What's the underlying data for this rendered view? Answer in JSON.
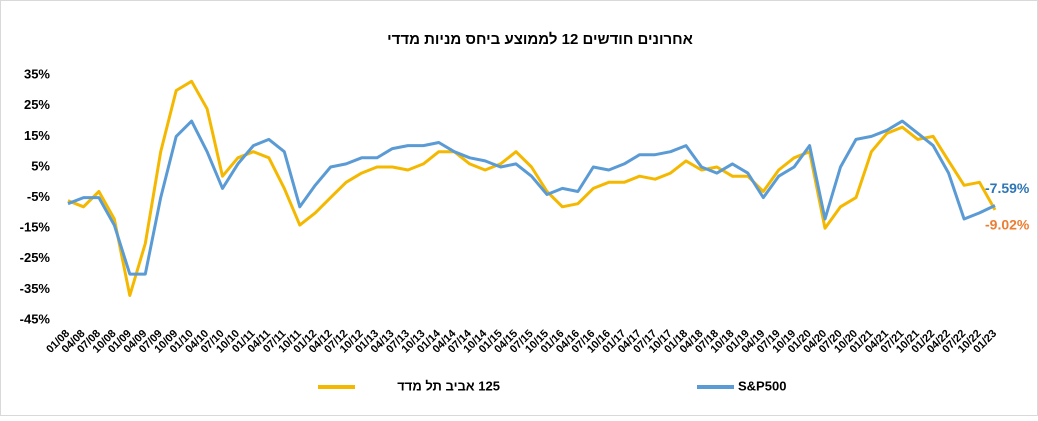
{
  "chart_data": {
    "type": "line",
    "title": "אחרונים חודשים 12 לממוצע ביחס מניות מדדי",
    "categories": [
      "01/08",
      "04/08",
      "07/08",
      "10/08",
      "01/09",
      "04/09",
      "07/09",
      "10/09",
      "01/10",
      "04/10",
      "07/10",
      "10/10",
      "01/11",
      "04/11",
      "07/11",
      "10/11",
      "01/12",
      "04/12",
      "07/12",
      "10/12",
      "01/13",
      "04/13",
      "07/13",
      "10/13",
      "01/14",
      "04/14",
      "07/14",
      "10/14",
      "01/15",
      "04/15",
      "07/15",
      "10/15",
      "01/16",
      "04/16",
      "07/16",
      "10/16",
      "01/17",
      "04/17",
      "07/17",
      "10/17",
      "01/18",
      "04/18",
      "07/18",
      "10/18",
      "01/19",
      "04/19",
      "07/19",
      "10/19",
      "01/20",
      "04/20",
      "07/20",
      "10/20",
      "01/21",
      "04/21",
      "07/21",
      "10/21",
      "01/22",
      "04/22",
      "07/22",
      "10/22",
      "01/23"
    ],
    "series": [
      {
        "name": "125 אביב תל מדד",
        "color": "#f5b800",
        "values": [
          -6,
          -8,
          -3,
          -12,
          -37,
          -20,
          10,
          30,
          33,
          24,
          2,
          8,
          10,
          8,
          -2,
          -14,
          -10,
          -5,
          0,
          3,
          5,
          5,
          4,
          6,
          10,
          10,
          6,
          4,
          6,
          10,
          5,
          -3,
          -8,
          -7,
          -2,
          0,
          0,
          2,
          1,
          3,
          7,
          4,
          5,
          2,
          2,
          -3,
          4,
          8,
          10,
          -15,
          -8,
          -5,
          10,
          16,
          18,
          14,
          15,
          7,
          -1,
          0,
          -9.02
        ],
        "value_labels": [
          null,
          null,
          null,
          null,
          null,
          null,
          null,
          null,
          null,
          null,
          null,
          null,
          null,
          null,
          null,
          null,
          null,
          null,
          null,
          null,
          null,
          null,
          null,
          null,
          null,
          null,
          null,
          null,
          null,
          null,
          null,
          null,
          null,
          null,
          null,
          null,
          null,
          null,
          null,
          null,
          null,
          null,
          null,
          null,
          null,
          null,
          null,
          null,
          null,
          null,
          null,
          null,
          null,
          null,
          null,
          null,
          null,
          null,
          null,
          null,
          "-9.02%"
        ],
        "label_color": "#ed7d31"
      },
      {
        "name": "S&P500",
        "color": "#5b9bd5",
        "values": [
          -7,
          -5,
          -5,
          -14,
          -30,
          -30,
          -5,
          15,
          20,
          10,
          -2,
          6,
          12,
          14,
          10,
          -8,
          -1,
          5,
          6,
          8,
          8,
          11,
          12,
          12,
          13,
          10,
          8,
          7,
          5,
          6,
          2,
          -4,
          -2,
          -3,
          5,
          4,
          6,
          9,
          9,
          10,
          12,
          5,
          3,
          6,
          3,
          -5,
          2,
          5,
          12,
          -12,
          5,
          14,
          15,
          17,
          20,
          16,
          12,
          3,
          -12,
          -10,
          -7.59
        ],
        "value_labels": [
          null,
          null,
          null,
          null,
          null,
          null,
          null,
          null,
          null,
          null,
          null,
          null,
          null,
          null,
          null,
          null,
          null,
          null,
          null,
          null,
          null,
          null,
          null,
          null,
          null,
          null,
          null,
          null,
          null,
          null,
          null,
          null,
          null,
          null,
          null,
          null,
          null,
          null,
          null,
          null,
          null,
          null,
          null,
          null,
          null,
          null,
          null,
          null,
          null,
          null,
          null,
          null,
          null,
          null,
          null,
          null,
          null,
          null,
          null,
          null,
          "-7.59%"
        ],
        "label_color": "#2e75b6"
      }
    ],
    "ylim": [
      -45,
      38
    ],
    "yticks": [
      {
        "value": -45,
        "label": "-45%"
      },
      {
        "value": -35,
        "label": "-35%"
      },
      {
        "value": -25,
        "label": "-25%"
      },
      {
        "value": -15,
        "label": "-15%"
      },
      {
        "value": -5,
        "label": "-5%"
      },
      {
        "value": 5,
        "label": "5%"
      },
      {
        "value": 15,
        "label": "15%"
      },
      {
        "value": 25,
        "label": "25%"
      },
      {
        "value": 35,
        "label": "35%"
      }
    ],
    "grid": false
  }
}
